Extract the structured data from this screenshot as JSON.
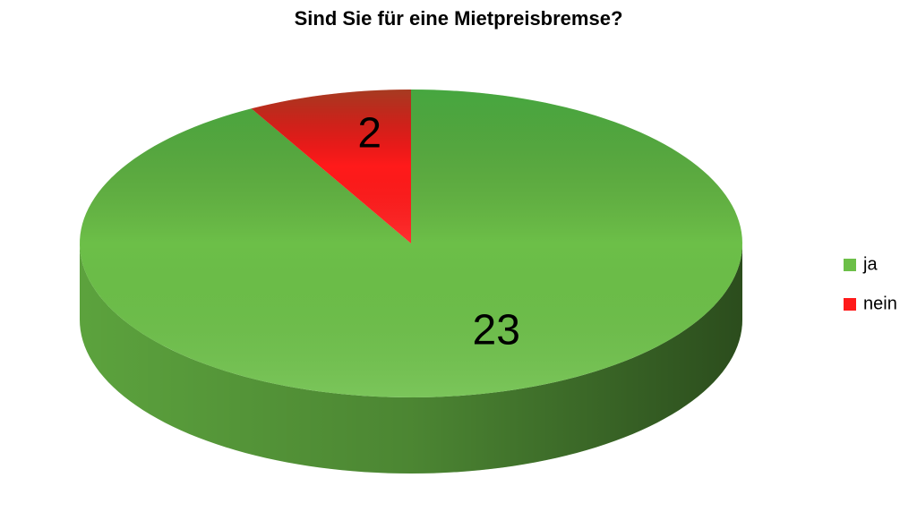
{
  "chart_data": {
    "type": "pie",
    "title": "Sind Sie für eine Mietpreisbremse?",
    "categories": [
      "ja",
      "nein"
    ],
    "values": [
      23,
      2
    ],
    "colors": [
      "#6cbf48",
      "#ff1a1a"
    ],
    "legend": "right"
  }
}
